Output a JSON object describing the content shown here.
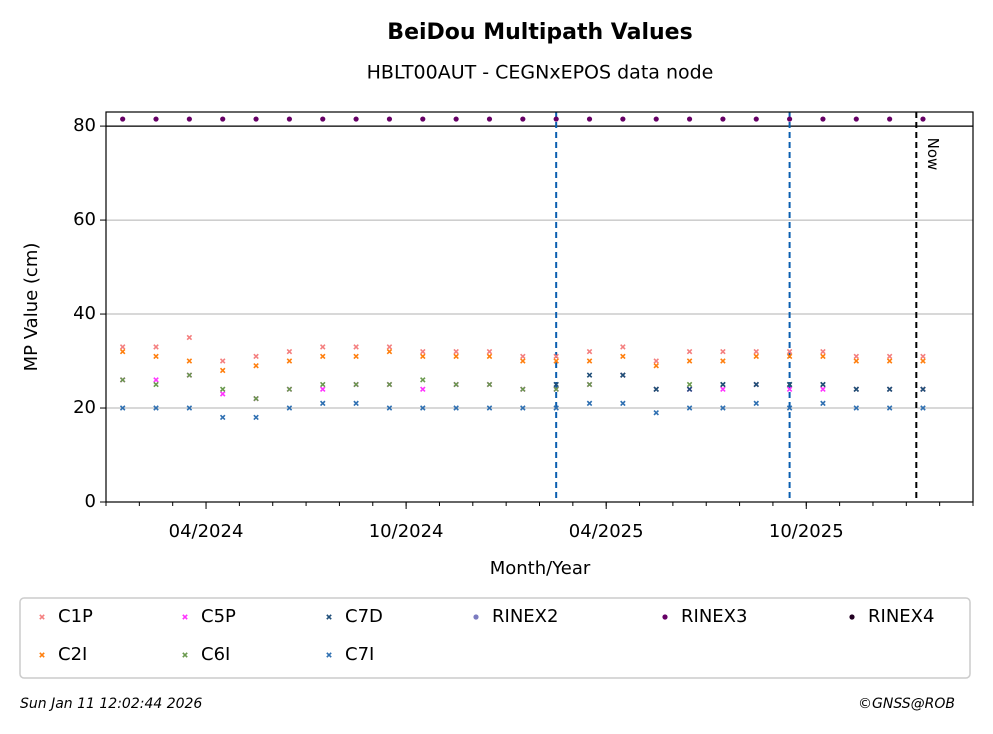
{
  "chart_data": {
    "type": "scatter",
    "title": "BeiDou Multipath Values",
    "subtitle": "HBLT00AUT - CEGNxEPOS data node",
    "x_label": "Month/Year",
    "y_label": "MP Value (cm)",
    "x": [
      "2024-01",
      "2024-02",
      "2024-03",
      "2024-04",
      "2024-05",
      "2024-06",
      "2024-07",
      "2024-08",
      "2024-09",
      "2024-10",
      "2024-11",
      "2024-12",
      "2025-01",
      "2025-02",
      "2025-03",
      "2025-04",
      "2025-05",
      "2025-06",
      "2025-07",
      "2025-08",
      "2025-09",
      "2025-10",
      "2025-11",
      "2025-12",
      "2026-01"
    ],
    "xlim": [
      "2024-01",
      "2026-02"
    ],
    "xticks": [
      {
        "value": "2024-04",
        "label": "04/2024"
      },
      {
        "value": "2024-10",
        "label": "10/2024"
      },
      {
        "value": "2025-04",
        "label": "04/2025"
      },
      {
        "value": "2025-10",
        "label": "10/2025"
      }
    ],
    "ylim": [
      0,
      83
    ],
    "yticks": [
      0,
      20,
      40,
      60,
      80
    ],
    "grid": true,
    "vlines": [
      "2025-02",
      "2025-09"
    ],
    "now": {
      "x": "2026-01",
      "label": "Now"
    },
    "series": [
      {
        "name": "C1P",
        "color": "#f47f7f",
        "marker": "x",
        "values": [
          33,
          33,
          35,
          30,
          31,
          32,
          33,
          33,
          33,
          32,
          32,
          32,
          31,
          31,
          32,
          33,
          30,
          32,
          32,
          32,
          32,
          32,
          31,
          31,
          31
        ]
      },
      {
        "name": "C2I",
        "color": "#ff7f0e",
        "marker": "x",
        "values": [
          32,
          31,
          30,
          28,
          29,
          30,
          31,
          31,
          32,
          31,
          31,
          31,
          30,
          30,
          30,
          31,
          29,
          30,
          30,
          31,
          31,
          31,
          30,
          30,
          30
        ]
      },
      {
        "name": "C5P",
        "color": "#ff33ff",
        "marker": "x",
        "values": [
          26,
          26,
          27,
          23,
          22,
          24,
          24,
          25,
          25,
          24,
          25,
          25,
          24,
          24,
          25,
          27,
          24,
          24,
          24,
          25,
          24,
          24,
          24,
          24,
          24
        ]
      },
      {
        "name": "C6I",
        "color": "#6a9a4e",
        "marker": "x",
        "values": [
          26,
          25,
          27,
          24,
          22,
          24,
          25,
          25,
          25,
          26,
          25,
          25,
          24,
          24,
          25,
          27,
          24,
          25,
          25,
          25,
          25,
          25,
          24,
          24,
          24
        ]
      },
      {
        "name": "C7D",
        "color": "#1f4e79",
        "marker": "x",
        "values": [
          null,
          null,
          null,
          null,
          null,
          null,
          null,
          null,
          null,
          null,
          null,
          null,
          null,
          25,
          27,
          27,
          24,
          24,
          25,
          25,
          25,
          25,
          24,
          24,
          24
        ]
      },
      {
        "name": "C7I",
        "color": "#2f70b2",
        "marker": "x",
        "values": [
          20,
          20,
          20,
          18,
          18,
          20,
          21,
          21,
          20,
          20,
          20,
          20,
          20,
          20,
          21,
          21,
          19,
          20,
          20,
          21,
          20,
          21,
          20,
          20,
          20
        ]
      },
      {
        "name": "RINEX2",
        "color": "#7b7bc0",
        "marker": "o",
        "values": [
          null,
          null,
          null,
          null,
          null,
          null,
          null,
          null,
          null,
          null,
          null,
          null,
          null,
          null,
          null,
          null,
          null,
          null,
          null,
          null,
          null,
          null,
          null,
          null,
          null
        ]
      },
      {
        "name": "RINEX3",
        "color": "#660066",
        "marker": "o",
        "values": [
          81.5,
          81.5,
          81.5,
          81.5,
          81.5,
          81.5,
          81.5,
          81.5,
          81.5,
          81.5,
          81.5,
          81.5,
          81.5,
          81.5,
          81.5,
          81.5,
          81.5,
          81.5,
          81.5,
          81.5,
          81.5,
          81.5,
          81.5,
          81.5,
          81.5
        ]
      },
      {
        "name": "RINEX4",
        "color": "#220022",
        "marker": "o",
        "values": [
          null,
          null,
          null,
          null,
          null,
          null,
          null,
          null,
          null,
          null,
          null,
          null,
          null,
          null,
          null,
          null,
          null,
          null,
          null,
          null,
          null,
          null,
          null,
          null,
          null
        ]
      }
    ]
  },
  "footer": {
    "timestamp": "Sun Jan 11 12:02:44 2026",
    "copyright": "©GNSS@ROB"
  }
}
